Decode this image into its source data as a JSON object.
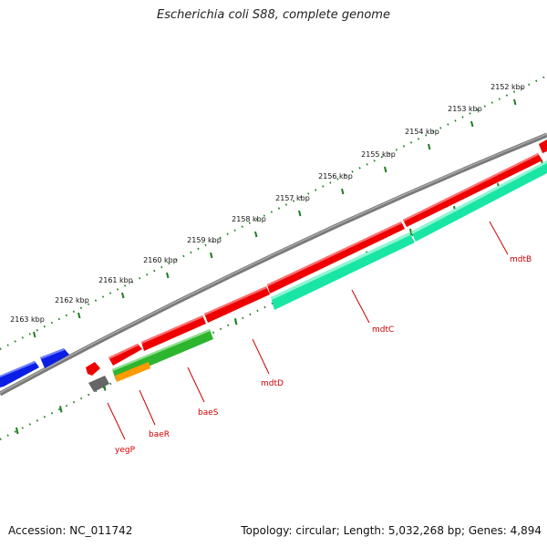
{
  "title": "Escherichia coli S88, complete genome",
  "footer": {
    "accession": "Accession: NC_011742",
    "stats": "Topology: circular; Length: 5,032,268 bp; Genes: 4,894"
  },
  "colors": {
    "backbone": "#808080",
    "ruler": "#1e7d1e",
    "label": "#cc0000",
    "gene_red": "#ee0000",
    "gene_blue": "#0a1ee6",
    "gene_gray": "#666666",
    "gene_green": "#2db52d",
    "gene_orange": "#ff9a00",
    "gene_cyan": "#19e6a5"
  },
  "ticks": [
    {
      "kbp": 2152,
      "label": "2152 kbp"
    },
    {
      "kbp": 2153,
      "label": "2153 kbp"
    },
    {
      "kbp": 2154,
      "label": "2154 kbp"
    },
    {
      "kbp": 2155,
      "label": "2155 kbp"
    },
    {
      "kbp": 2156,
      "label": "2156 kbp"
    },
    {
      "kbp": 2157,
      "label": "2157 kbp"
    },
    {
      "kbp": 2158,
      "label": "2158 kbp"
    },
    {
      "kbp": 2159,
      "label": "2159 kbp"
    },
    {
      "kbp": 2160,
      "label": "2160 kbp"
    },
    {
      "kbp": 2161,
      "label": "2161 kbp"
    },
    {
      "kbp": 2162,
      "label": "2162 kbp"
    },
    {
      "kbp": 2163,
      "label": "2163 kbp"
    }
  ],
  "gene_labels": [
    "yegP",
    "baeR",
    "baeS",
    "mdtD",
    "mdtC",
    "mdtB"
  ]
}
